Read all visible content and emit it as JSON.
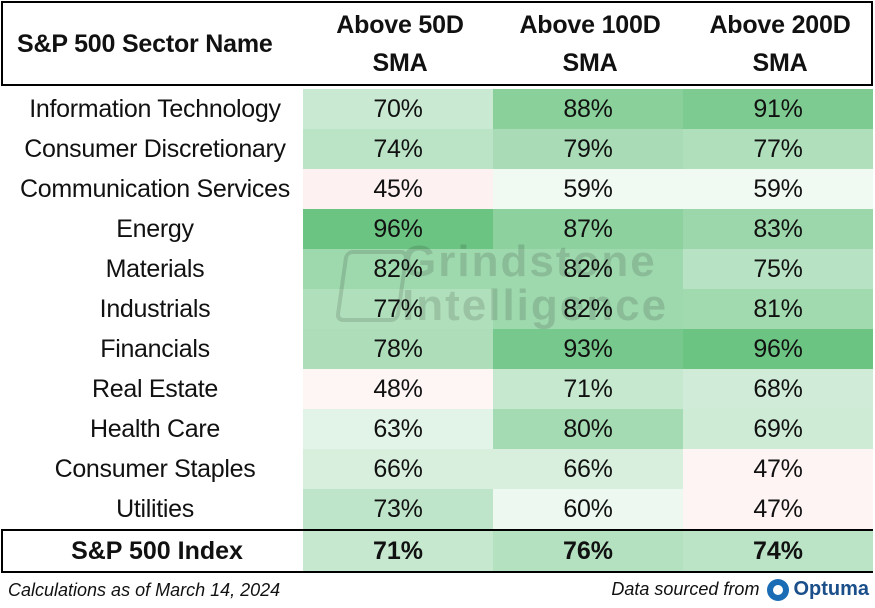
{
  "chart_data": {
    "type": "table",
    "columns": [
      "S&P 500 Sector Name",
      "Above 50D SMA",
      "Above 100D SMA",
      "Above 200D SMA"
    ],
    "header_lines": {
      "name": "S&P 500 Sector Name",
      "c1": [
        "Above 50D",
        "SMA"
      ],
      "c2": [
        "Above 100D",
        "SMA"
      ],
      "c3": [
        "Above 200D",
        "SMA"
      ]
    },
    "rows": [
      {
        "sector": "Information Technology",
        "values": [
          "70%",
          "88%",
          "91%"
        ],
        "nums": [
          70,
          88,
          91
        ]
      },
      {
        "sector": "Consumer Discretionary",
        "values": [
          "74%",
          "79%",
          "77%"
        ],
        "nums": [
          74,
          79,
          77
        ]
      },
      {
        "sector": "Communication Services",
        "values": [
          "45%",
          "59%",
          "59%"
        ],
        "nums": [
          45,
          59,
          59
        ]
      },
      {
        "sector": "Energy",
        "values": [
          "96%",
          "87%",
          "83%"
        ],
        "nums": [
          96,
          87,
          83
        ]
      },
      {
        "sector": "Materials",
        "values": [
          "82%",
          "82%",
          "75%"
        ],
        "nums": [
          82,
          82,
          75
        ]
      },
      {
        "sector": "Industrials",
        "values": [
          "77%",
          "82%",
          "81%"
        ],
        "nums": [
          77,
          82,
          81
        ]
      },
      {
        "sector": "Financials",
        "values": [
          "78%",
          "93%",
          "96%"
        ],
        "nums": [
          78,
          93,
          96
        ]
      },
      {
        "sector": "Real Estate",
        "values": [
          "48%",
          "71%",
          "68%"
        ],
        "nums": [
          48,
          71,
          68
        ]
      },
      {
        "sector": "Health Care",
        "values": [
          "63%",
          "80%",
          "69%"
        ],
        "nums": [
          63,
          80,
          69
        ]
      },
      {
        "sector": "Consumer Staples",
        "values": [
          "66%",
          "66%",
          "47%"
        ],
        "nums": [
          66,
          66,
          47
        ]
      },
      {
        "sector": "Utilities",
        "values": [
          "73%",
          "60%",
          "47%"
        ],
        "nums": [
          73,
          60,
          47
        ]
      }
    ],
    "total": {
      "sector": "S&P 500 Index",
      "values": [
        "71%",
        "76%",
        "74%"
      ],
      "nums": [
        71,
        76,
        74
      ]
    },
    "color_scale": {
      "low": "#fdeeee",
      "mid": "#ffffff",
      "high": "#6cc483"
    }
  },
  "footer": {
    "note": "Calculations as of March 14, 2024",
    "source_label": "Data sourced from",
    "logo_text": "Optuma"
  },
  "watermark": {
    "line1": "Grindstone",
    "line2": "Intelligence"
  }
}
